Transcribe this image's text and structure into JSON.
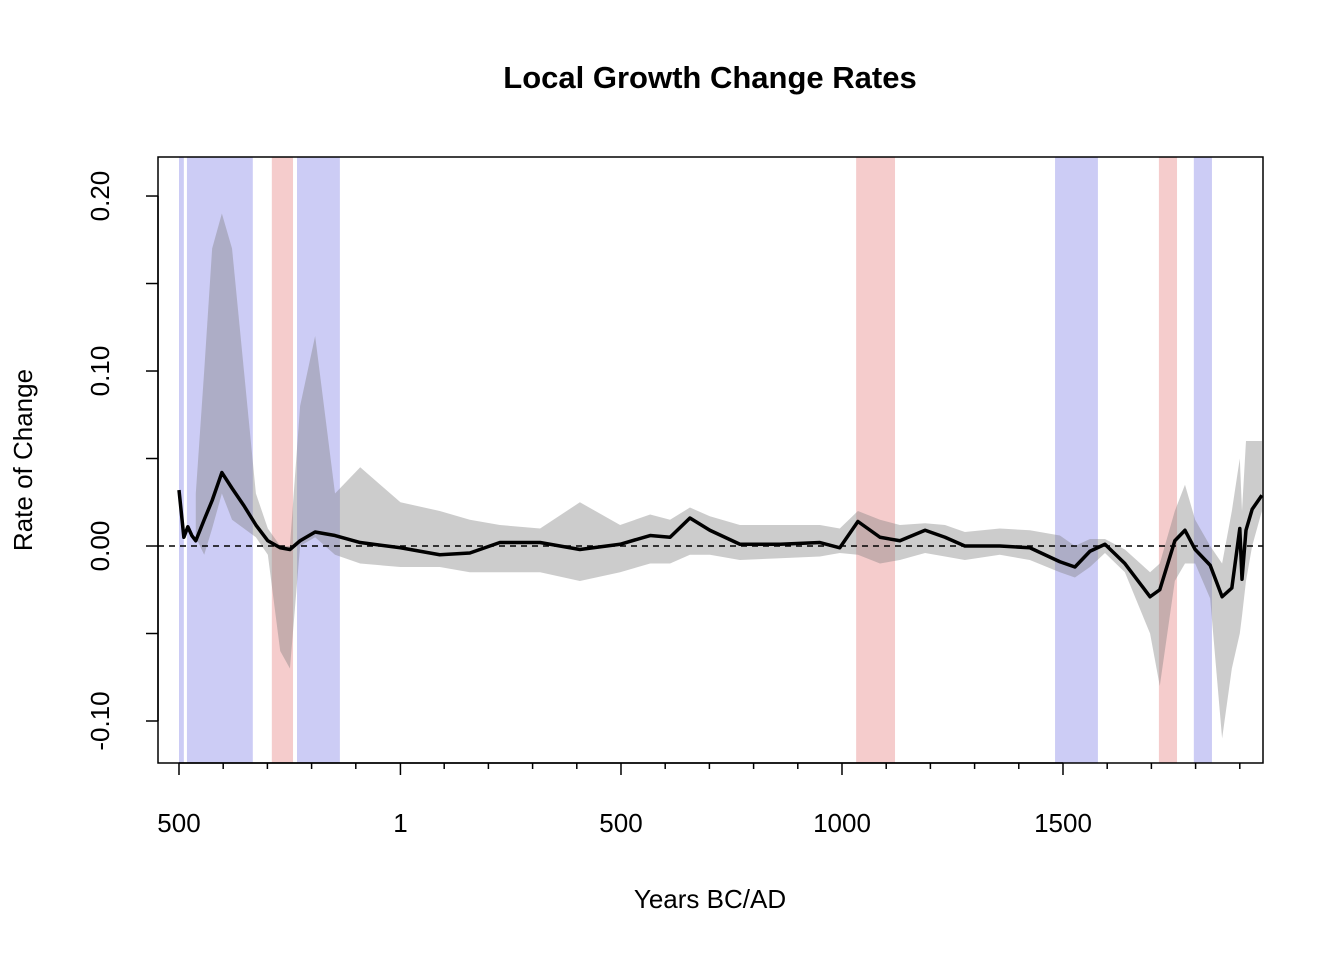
{
  "chart_data": {
    "type": "line",
    "title": "Local Growth Change Rates",
    "x_label": "Years BC/AD",
    "y_label": "Rate of Change",
    "x": [
      -500,
      -489,
      -480,
      -471,
      -462,
      -443,
      -425,
      -403,
      -380,
      -353,
      -326,
      -299,
      -271,
      -249,
      -226,
      -192,
      -147,
      -90,
      1,
      90,
      158,
      226,
      317,
      407,
      498,
      566,
      611,
      656,
      701,
      769,
      860,
      950,
      995,
      1036,
      1086,
      1131,
      1188,
      1233,
      1278,
      1357,
      1425,
      1493,
      1527,
      1561,
      1595,
      1640,
      1697,
      1719,
      1753,
      1776,
      1799,
      1833,
      1860,
      1882,
      1900,
      1905,
      1914,
      1928,
      1950
    ],
    "values": [
      0.032,
      0.005,
      0.011,
      0.006,
      0.003,
      0.015,
      0.026,
      0.042,
      0.033,
      0.023,
      0.012,
      0.003,
      -0.001,
      -0.002,
      0.003,
      0.008,
      0.006,
      0.002,
      -0.001,
      -0.005,
      -0.004,
      0.002,
      0.002,
      -0.002,
      0.001,
      0.006,
      0.005,
      0.016,
      0.009,
      0.001,
      0.001,
      0.002,
      -0.001,
      0.014,
      0.005,
      0.003,
      0.009,
      0.005,
      0,
      0,
      -0.001,
      -0.009,
      -0.012,
      -0.003,
      0.001,
      -0.01,
      -0.029,
      -0.025,
      0.003,
      0.009,
      -0.002,
      -0.011,
      -0.029,
      -0.024,
      0.01,
      -0.019,
      0.009,
      0.021,
      0.029
    ],
    "lower": [
      null,
      null,
      null,
      null,
      0.005,
      -0.005,
      0.01,
      0.03,
      0.015,
      0.01,
      0.005,
      -0.005,
      -0.06,
      -0.07,
      0.0,
      0.005,
      -0.005,
      -0.01,
      -0.012,
      -0.012,
      -0.015,
      -0.015,
      -0.015,
      -0.02,
      -0.015,
      -0.01,
      -0.01,
      -0.005,
      -0.005,
      -0.008,
      -0.007,
      -0.006,
      -0.004,
      -0.005,
      -0.01,
      -0.008,
      -0.004,
      -0.006,
      -0.008,
      -0.005,
      -0.008,
      -0.015,
      -0.018,
      -0.012,
      -0.004,
      -0.015,
      -0.05,
      -0.08,
      -0.02,
      -0.01,
      -0.01,
      -0.03,
      -0.11,
      -0.07,
      -0.05,
      -0.04,
      -0.02,
      0.0,
      0.02
    ],
    "upper": [
      null,
      null,
      null,
      null,
      0.03,
      0.1,
      0.17,
      0.19,
      0.17,
      0.1,
      0.03,
      0.01,
      0.0,
      0.0,
      0.08,
      0.12,
      0.03,
      0.045,
      0.025,
      0.02,
      0.015,
      0.012,
      0.01,
      0.025,
      0.012,
      0.018,
      0.015,
      0.022,
      0.017,
      0.012,
      0.012,
      0.012,
      0.01,
      0.02,
      0.015,
      0.012,
      0.013,
      0.012,
      0.008,
      0.01,
      0.009,
      0.006,
      0.0,
      0.004,
      0.004,
      -0.002,
      -0.015,
      -0.01,
      0.02,
      0.035,
      0.015,
      0.0,
      -0.01,
      0.02,
      0.05,
      0.02,
      0.06,
      0.06,
      0.06
    ],
    "increase_periods": [
      [
        -500,
        -489
      ],
      [
        -482,
        -333
      ],
      [
        -233,
        -136
      ],
      [
        1482,
        1579
      ],
      [
        1796,
        1837
      ]
    ],
    "decrease_periods": [
      [
        -290,
        -242
      ],
      [
        1032,
        1120
      ],
      [
        1717,
        1758
      ]
    ],
    "color": "#000000",
    "band_color": "#808080",
    "increase_color": "#0000cc",
    "decrease_color": "#cc0000",
    "xlim": [
      -547.5,
      1952.5
    ],
    "ylim": [
      -0.124,
      0.2223
    ],
    "xticks": [
      {
        "value": -500,
        "label": "500"
      },
      1,
      500,
      1000,
      1500
    ],
    "xminorticks": [
      -400,
      -300,
      -200,
      -100,
      100,
      200,
      300,
      400,
      600,
      700,
      800,
      900,
      1100,
      1200,
      1300,
      1400,
      1600,
      1700,
      1800,
      1900
    ],
    "yticks": [
      {
        "value": -0.1,
        "label": "-0.10"
      },
      {
        "value": 0,
        "label": "0.00"
      },
      {
        "value": 0.1,
        "label": "0.10"
      },
      {
        "value": 0.2,
        "label": "0.20"
      }
    ],
    "yminorticks": [
      -0.05,
      0.05,
      0.15
    ]
  }
}
